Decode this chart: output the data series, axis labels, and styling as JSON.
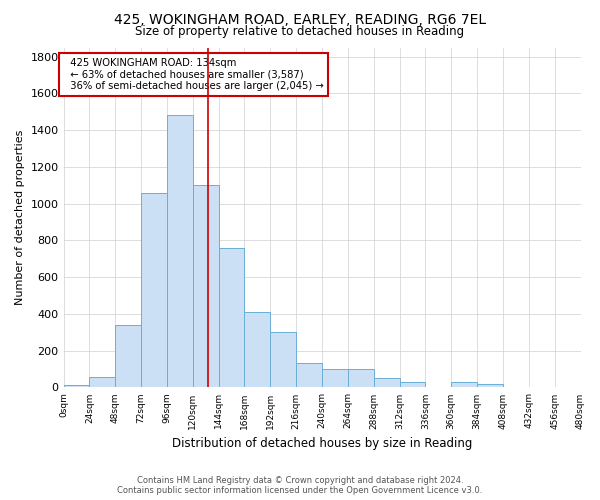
{
  "title": "425, WOKINGHAM ROAD, EARLEY, READING, RG6 7EL",
  "subtitle": "Size of property relative to detached houses in Reading",
  "xlabel": "Distribution of detached houses by size in Reading",
  "ylabel": "Number of detached properties",
  "footer_line1": "Contains HM Land Registry data © Crown copyright and database right 2024.",
  "footer_line2": "Contains public sector information licensed under the Open Government Licence v3.0.",
  "annotation_line1": "425 WOKINGHAM ROAD: 134sqm",
  "annotation_line2": "← 63% of detached houses are smaller (3,587)",
  "annotation_line3": "36% of semi-detached houses are larger (2,045) →",
  "bins": [
    0,
    24,
    48,
    72,
    96,
    120,
    144,
    168,
    192,
    216,
    240,
    264,
    288,
    312,
    336,
    360,
    384,
    408,
    432,
    456,
    480
  ],
  "values": [
    15,
    55,
    340,
    1060,
    1480,
    1100,
    760,
    410,
    300,
    135,
    100,
    100,
    50,
    30,
    0,
    30,
    20,
    5,
    0,
    0
  ],
  "bar_face_color": "#cce0f5",
  "bar_edge_color": "#6aaed6",
  "vline_color": "#cc0000",
  "vline_x": 134,
  "grid_color": "#d0d0d0",
  "background_color": "#ffffff",
  "annotation_box_color": "#cc0000",
  "ylim": [
    0,
    1850
  ],
  "yticks": [
    0,
    200,
    400,
    600,
    800,
    1000,
    1200,
    1400,
    1600,
    1800
  ]
}
